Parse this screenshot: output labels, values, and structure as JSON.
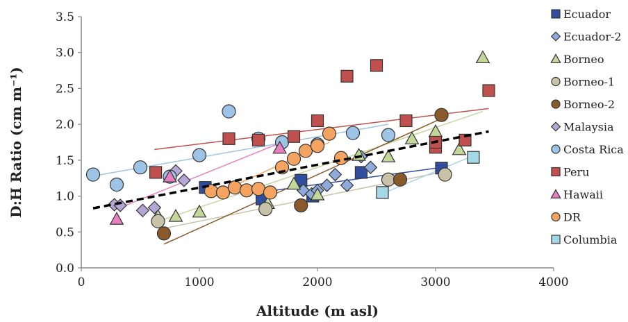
{
  "chart_data": {
    "type": "scatter",
    "title": "",
    "xlabel": "Altitude (m asl)",
    "ylabel": "D:H Ratio (cm m⁻¹)",
    "xlim": [
      0,
      4000
    ],
    "ylim": [
      0,
      3.5
    ],
    "xticks": [
      "0",
      "1000",
      "2000",
      "3000",
      "4000"
    ],
    "yticks": [
      "0.0",
      "0.5",
      "1.0",
      "1.5",
      "2.0",
      "2.5",
      "3.0",
      "3.5"
    ],
    "grid": false,
    "legend_position": "right",
    "overall_trend": {
      "style": "dashed",
      "color": "#000000",
      "x": [
        100,
        3450
      ],
      "y": [
        0.83,
        1.9
      ]
    },
    "series": [
      {
        "name": "Ecuador",
        "marker": "square",
        "color": "#2f4f9e",
        "trend": {
          "x": [
            1500,
            3050
          ],
          "y": [
            1.05,
            1.4
          ]
        },
        "points": [
          [
            1050,
            1.12
          ],
          [
            1530,
            0.96
          ],
          [
            1860,
            1.22
          ],
          [
            1960,
            1.0
          ],
          [
            2370,
            1.33
          ],
          [
            3050,
            1.39
          ]
        ]
      },
      {
        "name": "Ecuador-2",
        "marker": "diamond",
        "color": "#8eaadb",
        "trend": null,
        "points": [
          [
            1880,
            1.08
          ],
          [
            1950,
            1.03
          ],
          [
            2000,
            1.08
          ],
          [
            2080,
            1.15
          ],
          [
            2150,
            1.3
          ],
          [
            2250,
            1.15
          ],
          [
            2370,
            1.55
          ],
          [
            2450,
            1.4
          ]
        ]
      },
      {
        "name": "Borneo",
        "marker": "triangle",
        "color": "#c4d79b",
        "trend": {
          "x": [
            600,
            3400
          ],
          "y": [
            0.62,
            2.18
          ]
        },
        "points": [
          [
            650,
            0.72
          ],
          [
            800,
            0.72
          ],
          [
            1000,
            0.78
          ],
          [
            1580,
            0.9
          ],
          [
            1800,
            1.17
          ],
          [
            2000,
            1.02
          ],
          [
            2350,
            1.57
          ],
          [
            2600,
            1.55
          ],
          [
            2800,
            1.8
          ],
          [
            3000,
            1.9
          ],
          [
            3200,
            1.65
          ],
          [
            3400,
            2.93
          ]
        ]
      },
      {
        "name": "Borneo-1",
        "marker": "circle",
        "color": "#c8c2a8",
        "trend": {
          "x": [
            700,
            3100
          ],
          "y": [
            0.55,
            1.35
          ]
        },
        "points": [
          [
            650,
            0.65
          ],
          [
            1560,
            0.82
          ],
          [
            2600,
            1.23
          ],
          [
            3080,
            1.3
          ]
        ]
      },
      {
        "name": "Borneo-2",
        "marker": "circle",
        "color": "#8b5a2b",
        "trend": {
          "x": [
            700,
            3050
          ],
          "y": [
            0.33,
            2.08
          ]
        },
        "points": [
          [
            700,
            0.48
          ],
          [
            1860,
            0.87
          ],
          [
            2700,
            1.23
          ],
          [
            3050,
            2.13
          ]
        ]
      },
      {
        "name": "Malaysia",
        "marker": "diamond",
        "color": "#b4a7d6",
        "trend": null,
        "points": [
          [
            280,
            0.88
          ],
          [
            330,
            0.87
          ],
          [
            520,
            0.8
          ],
          [
            620,
            0.84
          ],
          [
            800,
            1.35
          ],
          [
            870,
            1.22
          ]
        ]
      },
      {
        "name": "Costa Rica",
        "marker": "circle",
        "color": "#9dc3e6",
        "trend": {
          "x": [
            100,
            2600
          ],
          "y": [
            1.28,
            2.0
          ]
        },
        "points": [
          [
            100,
            1.3
          ],
          [
            300,
            1.16
          ],
          [
            500,
            1.4
          ],
          [
            750,
            1.27
          ],
          [
            1000,
            1.57
          ],
          [
            1250,
            2.18
          ],
          [
            1500,
            1.8
          ],
          [
            1700,
            1.75
          ],
          [
            2000,
            1.72
          ],
          [
            2300,
            1.88
          ],
          [
            2600,
            1.85
          ]
        ]
      },
      {
        "name": "Peru",
        "marker": "square",
        "color": "#c0504d",
        "trend": {
          "x": [
            620,
            3450
          ],
          "y": [
            1.65,
            2.22
          ]
        },
        "points": [
          [
            630,
            1.33
          ],
          [
            1250,
            1.8
          ],
          [
            1500,
            1.78
          ],
          [
            1800,
            1.83
          ],
          [
            2000,
            2.05
          ],
          [
            2250,
            2.67
          ],
          [
            2500,
            2.82
          ],
          [
            2750,
            2.05
          ],
          [
            3000,
            1.68
          ],
          [
            3000,
            1.75
          ],
          [
            3250,
            1.78
          ],
          [
            3450,
            2.47
          ]
        ]
      },
      {
        "name": "Hawaii",
        "marker": "triangle",
        "color": "#e880c0",
        "trend": {
          "x": [
            300,
            1700
          ],
          "y": [
            0.82,
            1.75
          ]
        },
        "points": [
          [
            300,
            0.68
          ],
          [
            750,
            1.27
          ],
          [
            1680,
            1.67
          ]
        ]
      },
      {
        "name": "DR",
        "marker": "circle",
        "color": "#f4a460",
        "trend": {
          "x": [
            1100,
            2100
          ],
          "y": [
            1.0,
            1.75
          ]
        },
        "points": [
          [
            1100,
            1.07
          ],
          [
            1200,
            1.05
          ],
          [
            1300,
            1.12
          ],
          [
            1400,
            1.08
          ],
          [
            1500,
            1.1
          ],
          [
            1600,
            1.05
          ],
          [
            1700,
            1.4
          ],
          [
            1800,
            1.52
          ],
          [
            1900,
            1.63
          ],
          [
            2000,
            1.7
          ],
          [
            2100,
            1.87
          ],
          [
            2200,
            1.53
          ]
        ]
      },
      {
        "name": "Columbia",
        "marker": "square",
        "color": "#a5d8e6",
        "trend": {
          "x": [
            2500,
            3300
          ],
          "y": [
            1.0,
            1.55
          ]
        },
        "points": [
          [
            2550,
            1.05
          ],
          [
            3320,
            1.54
          ]
        ]
      }
    ]
  }
}
